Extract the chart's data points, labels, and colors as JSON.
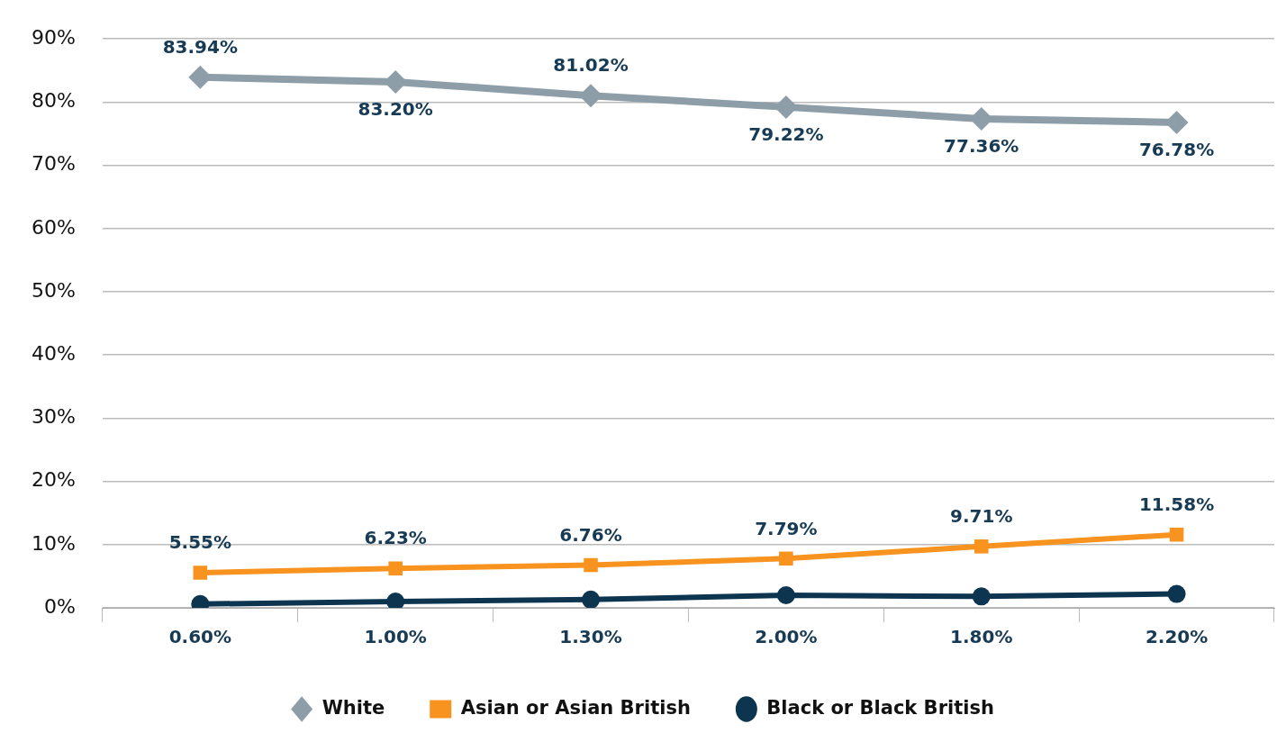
{
  "chart_data": {
    "type": "line",
    "categories": [
      "0.60%",
      "1.00%",
      "1.30%",
      "2.00%",
      "1.80%",
      "2.20%"
    ],
    "ylim": [
      0,
      90
    ],
    "yticks": [
      {
        "value": 0,
        "label": "0%"
      },
      {
        "value": 10,
        "label": "10%"
      },
      {
        "value": 20,
        "label": "20%"
      },
      {
        "value": 30,
        "label": "30%"
      },
      {
        "value": 40,
        "label": "40%"
      },
      {
        "value": 50,
        "label": "50%"
      },
      {
        "value": 60,
        "label": "60%"
      },
      {
        "value": 70,
        "label": "70%"
      },
      {
        "value": 80,
        "label": "80%"
      },
      {
        "value": 90,
        "label": "90%"
      }
    ],
    "grid": "y",
    "legend": "bottom",
    "line_style": "solid",
    "series": [
      {
        "name": "White",
        "color": "#8d9ea8",
        "marker": "diamond",
        "values": [
          83.94,
          83.2,
          81.02,
          79.22,
          77.36,
          76.78
        ],
        "value_labels": [
          "83.94%",
          "83.20%",
          "81.02%",
          "79.22%",
          "77.36%",
          "76.78%"
        ]
      },
      {
        "name": "Asian or Asian British",
        "color": "#f7931e",
        "marker": "square",
        "values": [
          5.55,
          6.23,
          6.76,
          7.79,
          9.71,
          11.58
        ],
        "value_labels": [
          "5.55%",
          "6.23%",
          "6.76%",
          "7.79%",
          "9.71%",
          "11.58%"
        ]
      },
      {
        "name": "Black or Black British",
        "color": "#0d3550",
        "marker": "circle",
        "values": [
          0.6,
          1.0,
          1.3,
          2.0,
          1.8,
          2.2
        ]
      }
    ]
  }
}
